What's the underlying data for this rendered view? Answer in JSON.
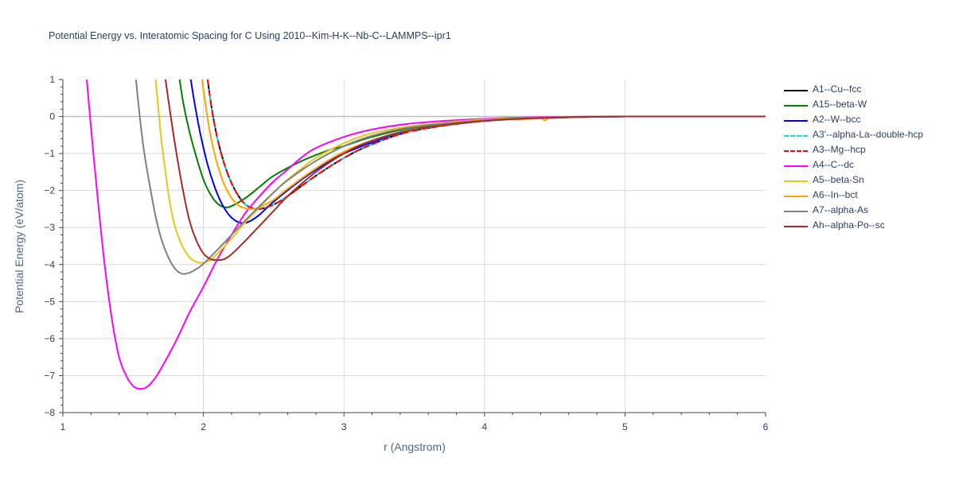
{
  "chart_data": {
    "type": "line",
    "title": "Potential Energy vs. Interatomic Spacing for C Using 2010--Kim-H-K--Nb-C--LAMMPS--ipr1",
    "xlabel": "r (Angstrom)",
    "ylabel": "Potential Energy (eV/atom)",
    "xlim": [
      1,
      6
    ],
    "ylim": [
      -8,
      1
    ],
    "x_ticks": [
      "1",
      "2",
      "3",
      "4",
      "5",
      "6"
    ],
    "y_ticks": [
      "1",
      "0",
      "−1",
      "−2",
      "−3",
      "−4",
      "−5",
      "−6",
      "−7",
      "−8"
    ],
    "grid": true,
    "legend_position": "right",
    "series": [
      {
        "name": "A1--Cu--fcc",
        "color": "#000000",
        "dash": "solid",
        "points": [
          [
            2.03,
            1.0
          ],
          [
            2.06,
            0.2
          ],
          [
            2.1,
            -0.6
          ],
          [
            2.15,
            -1.3
          ],
          [
            2.2,
            -1.8
          ],
          [
            2.25,
            -2.15
          ],
          [
            2.3,
            -2.38
          ],
          [
            2.35,
            -2.48
          ],
          [
            2.4,
            -2.5
          ],
          [
            2.5,
            -2.38
          ],
          [
            2.6,
            -2.15
          ],
          [
            2.8,
            -1.6
          ],
          [
            3.0,
            -1.12
          ],
          [
            3.2,
            -0.75
          ],
          [
            3.5,
            -0.38
          ],
          [
            4.0,
            -0.12
          ],
          [
            4.5,
            -0.03
          ],
          [
            5.0,
            0.0
          ],
          [
            6.0,
            0.0
          ]
        ]
      },
      {
        "name": "A15--beta-W",
        "color": "#008000",
        "dash": "solid",
        "points": [
          [
            1.83,
            1.0
          ],
          [
            1.86,
            0.3
          ],
          [
            1.9,
            -0.4
          ],
          [
            1.95,
            -1.1
          ],
          [
            2.0,
            -1.7
          ],
          [
            2.05,
            -2.1
          ],
          [
            2.1,
            -2.35
          ],
          [
            2.15,
            -2.45
          ],
          [
            2.2,
            -2.42
          ],
          [
            2.3,
            -2.2
          ],
          [
            2.4,
            -1.9
          ],
          [
            2.5,
            -1.6
          ],
          [
            2.7,
            -1.2
          ],
          [
            2.9,
            -0.9
          ],
          [
            3.0,
            -0.8
          ],
          [
            3.2,
            -0.55
          ],
          [
            3.5,
            -0.3
          ],
          [
            4.0,
            -0.1
          ],
          [
            4.5,
            -0.02
          ],
          [
            5.0,
            0.0
          ],
          [
            6.0,
            0.0
          ]
        ]
      },
      {
        "name": "A2--W--bcc",
        "color": "#0000ff",
        "dash": "solid",
        "points": [
          [
            1.91,
            1.0
          ],
          [
            1.94,
            0.3
          ],
          [
            1.98,
            -0.5
          ],
          [
            2.03,
            -1.3
          ],
          [
            2.08,
            -1.9
          ],
          [
            2.13,
            -2.35
          ],
          [
            2.18,
            -2.65
          ],
          [
            2.23,
            -2.82
          ],
          [
            2.28,
            -2.88
          ],
          [
            2.33,
            -2.83
          ],
          [
            2.4,
            -2.65
          ],
          [
            2.5,
            -2.3
          ],
          [
            2.7,
            -1.7
          ],
          [
            2.9,
            -1.2
          ],
          [
            3.0,
            -1.0
          ],
          [
            3.2,
            -0.7
          ],
          [
            3.5,
            -0.38
          ],
          [
            4.0,
            -0.12
          ],
          [
            4.5,
            -0.03
          ],
          [
            5.0,
            0.0
          ],
          [
            6.0,
            0.0
          ]
        ]
      },
      {
        "name": "A3'--alpha-La--double-hcp",
        "color": "#00e5e5",
        "dash": "dashdot",
        "points": [
          [
            2.03,
            1.0
          ],
          [
            2.06,
            0.2
          ],
          [
            2.1,
            -0.6
          ],
          [
            2.15,
            -1.3
          ],
          [
            2.2,
            -1.8
          ],
          [
            2.25,
            -2.15
          ],
          [
            2.3,
            -2.38
          ],
          [
            2.35,
            -2.48
          ],
          [
            2.4,
            -2.5
          ],
          [
            2.5,
            -2.38
          ],
          [
            2.6,
            -2.15
          ],
          [
            2.8,
            -1.6
          ],
          [
            3.0,
            -1.12
          ],
          [
            3.2,
            -0.75
          ],
          [
            3.5,
            -0.38
          ],
          [
            4.0,
            -0.12
          ],
          [
            4.5,
            -0.03
          ],
          [
            5.0,
            0.0
          ],
          [
            6.0,
            0.0
          ]
        ]
      },
      {
        "name": "A3--Mg--hcp",
        "color": "#ff0000",
        "dash": "dash",
        "points": [
          [
            2.03,
            1.0
          ],
          [
            2.06,
            0.2
          ],
          [
            2.1,
            -0.6
          ],
          [
            2.15,
            -1.3
          ],
          [
            2.2,
            -1.8
          ],
          [
            2.25,
            -2.15
          ],
          [
            2.3,
            -2.38
          ],
          [
            2.35,
            -2.48
          ],
          [
            2.4,
            -2.5
          ],
          [
            2.5,
            -2.38
          ],
          [
            2.6,
            -2.15
          ],
          [
            2.8,
            -1.6
          ],
          [
            3.0,
            -1.12
          ],
          [
            3.2,
            -0.75
          ],
          [
            3.5,
            -0.38
          ],
          [
            4.0,
            -0.12
          ],
          [
            4.5,
            -0.03
          ],
          [
            5.0,
            0.0
          ],
          [
            6.0,
            0.0
          ]
        ]
      },
      {
        "name": "A4--C--dc",
        "color": "#ff00ff",
        "dash": "solid",
        "points": [
          [
            1.17,
            1.0
          ],
          [
            1.2,
            -0.3
          ],
          [
            1.25,
            -2.3
          ],
          [
            1.3,
            -4.1
          ],
          [
            1.35,
            -5.5
          ],
          [
            1.4,
            -6.5
          ],
          [
            1.45,
            -7.0
          ],
          [
            1.5,
            -7.28
          ],
          [
            1.55,
            -7.36
          ],
          [
            1.6,
            -7.3
          ],
          [
            1.65,
            -7.1
          ],
          [
            1.7,
            -6.8
          ],
          [
            1.8,
            -6.1
          ],
          [
            1.9,
            -5.3
          ],
          [
            2.0,
            -4.6
          ],
          [
            2.1,
            -3.85
          ],
          [
            2.2,
            -3.2
          ],
          [
            2.3,
            -2.6
          ],
          [
            2.4,
            -2.15
          ],
          [
            2.5,
            -1.75
          ],
          [
            2.6,
            -1.43
          ],
          [
            2.7,
            -1.1
          ],
          [
            2.8,
            -0.85
          ],
          [
            3.0,
            -0.55
          ],
          [
            3.2,
            -0.35
          ],
          [
            3.5,
            -0.18
          ],
          [
            4.0,
            -0.06
          ],
          [
            4.5,
            -0.01
          ],
          [
            5.0,
            0.0
          ],
          [
            6.0,
            0.0
          ]
        ]
      },
      {
        "name": "A5--beta-Sn",
        "color": "#e6c619",
        "dash": "solid",
        "points": [
          [
            1.66,
            1.0
          ],
          [
            1.68,
            0.2
          ],
          [
            1.7,
            -0.6
          ],
          [
            1.73,
            -1.5
          ],
          [
            1.76,
            -2.3
          ],
          [
            1.8,
            -3.0
          ],
          [
            1.85,
            -3.5
          ],
          [
            1.9,
            -3.8
          ],
          [
            1.95,
            -3.93
          ],
          [
            2.0,
            -3.95
          ],
          [
            2.05,
            -3.88
          ],
          [
            2.1,
            -3.7
          ],
          [
            2.2,
            -3.3
          ],
          [
            2.3,
            -2.85
          ],
          [
            2.4,
            -2.45
          ],
          [
            2.5,
            -2.05
          ],
          [
            2.6,
            -1.7
          ],
          [
            2.7,
            -1.4
          ],
          [
            2.8,
            -1.12
          ],
          [
            3.0,
            -0.72
          ],
          [
            3.2,
            -0.45
          ],
          [
            3.5,
            -0.25
          ],
          [
            4.0,
            -0.08
          ],
          [
            4.5,
            -0.02
          ],
          [
            5.0,
            0.0
          ],
          [
            6.0,
            0.0
          ]
        ]
      },
      {
        "name": "A6--In--bct",
        "color": "#ffa500",
        "dash": "solid",
        "points": [
          [
            1.99,
            1.0
          ],
          [
            2.02,
            0.2
          ],
          [
            2.05,
            -0.5
          ],
          [
            2.1,
            -1.3
          ],
          [
            2.15,
            -1.85
          ],
          [
            2.2,
            -2.2
          ],
          [
            2.25,
            -2.4
          ],
          [
            2.3,
            -2.48
          ],
          [
            2.35,
            -2.5
          ],
          [
            2.4,
            -2.45
          ],
          [
            2.5,
            -2.25
          ],
          [
            2.6,
            -1.95
          ],
          [
            2.8,
            -1.4
          ],
          [
            3.0,
            -0.95
          ],
          [
            3.2,
            -0.65
          ],
          [
            3.5,
            -0.35
          ],
          [
            4.0,
            -0.12
          ],
          [
            4.3,
            -0.07
          ],
          [
            4.4,
            -0.05
          ],
          [
            4.43,
            -0.11
          ],
          [
            4.46,
            -0.05
          ],
          [
            4.6,
            -0.02
          ],
          [
            5.0,
            0.0
          ],
          [
            6.0,
            0.0
          ]
        ]
      },
      {
        "name": "A7--alpha-As",
        "color": "#808080",
        "dash": "solid",
        "points": [
          [
            1.52,
            1.0
          ],
          [
            1.55,
            -0.1
          ],
          [
            1.58,
            -1.0
          ],
          [
            1.62,
            -1.9
          ],
          [
            1.66,
            -2.7
          ],
          [
            1.7,
            -3.3
          ],
          [
            1.75,
            -3.8
          ],
          [
            1.8,
            -4.12
          ],
          [
            1.85,
            -4.25
          ],
          [
            1.9,
            -4.22
          ],
          [
            1.95,
            -4.12
          ],
          [
            2.0,
            -3.98
          ],
          [
            2.1,
            -3.6
          ],
          [
            2.2,
            -3.2
          ],
          [
            2.3,
            -2.8
          ],
          [
            2.4,
            -2.42
          ],
          [
            2.5,
            -2.05
          ],
          [
            2.6,
            -1.72
          ],
          [
            2.8,
            -1.2
          ],
          [
            3.0,
            -0.8
          ],
          [
            3.2,
            -0.52
          ],
          [
            3.5,
            -0.28
          ],
          [
            4.0,
            -0.1
          ],
          [
            4.5,
            -0.02
          ],
          [
            5.0,
            0.0
          ],
          [
            6.0,
            0.0
          ]
        ]
      },
      {
        "name": "Ah--alpha-Po--sc",
        "color": "#a52a2a",
        "dash": "solid",
        "points": [
          [
            1.73,
            1.0
          ],
          [
            1.76,
            0.2
          ],
          [
            1.8,
            -0.8
          ],
          [
            1.85,
            -1.9
          ],
          [
            1.9,
            -2.8
          ],
          [
            1.95,
            -3.35
          ],
          [
            2.0,
            -3.7
          ],
          [
            2.05,
            -3.85
          ],
          [
            2.1,
            -3.88
          ],
          [
            2.15,
            -3.85
          ],
          [
            2.2,
            -3.72
          ],
          [
            2.3,
            -3.35
          ],
          [
            2.4,
            -2.95
          ],
          [
            2.5,
            -2.55
          ],
          [
            2.6,
            -2.15
          ],
          [
            2.8,
            -1.5
          ],
          [
            3.0,
            -1.0
          ],
          [
            3.2,
            -0.65
          ],
          [
            3.5,
            -0.35
          ],
          [
            4.0,
            -0.12
          ],
          [
            4.5,
            -0.03
          ],
          [
            5.0,
            0.0
          ],
          [
            6.0,
            0.0
          ]
        ]
      }
    ]
  }
}
